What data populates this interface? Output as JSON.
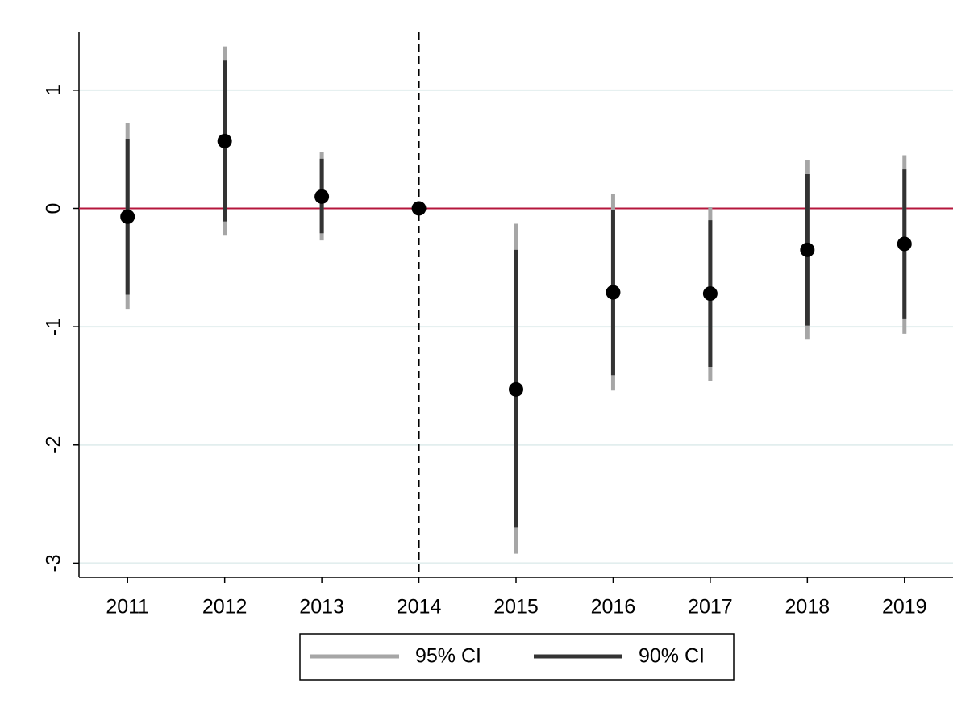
{
  "chart_data": {
    "type": "coefplot",
    "x": [
      2011,
      2012,
      2013,
      2014,
      2015,
      2016,
      2017,
      2018,
      2019
    ],
    "estimates": {
      "color": "#000000",
      "values": [
        -0.07,
        0.57,
        0.1,
        0,
        -1.53,
        -0.71,
        -0.72,
        -0.35,
        -0.3
      ]
    },
    "series": [
      {
        "name": "95% CI",
        "color": "#a6a6a6",
        "lower": [
          -0.85,
          -0.23,
          -0.27,
          null,
          -2.92,
          -1.54,
          -1.46,
          -1.11,
          -1.06
        ],
        "upper": [
          0.72,
          1.37,
          0.48,
          null,
          -0.13,
          0.12,
          0.01,
          0.41,
          0.45
        ]
      },
      {
        "name": "90% CI",
        "color": "#333333",
        "lower": [
          -0.73,
          -0.11,
          -0.21,
          null,
          -2.7,
          -1.41,
          -1.34,
          -0.99,
          -0.93
        ],
        "upper": [
          0.59,
          1.25,
          0.42,
          null,
          -0.35,
          -0.01,
          -0.1,
          0.29,
          0.33
        ]
      }
    ],
    "xlim": [
      2010.5,
      2019.5
    ],
    "ylim": [
      -3.12,
      1.49
    ],
    "xticks": [
      2011,
      2012,
      2013,
      2014,
      2015,
      2016,
      2017,
      2018,
      2019
    ],
    "yticks": [
      -3,
      -2,
      -1,
      0,
      1
    ],
    "grid": true,
    "grid_color": "#e2eeee",
    "hline": {
      "value": 0,
      "color": "#b5173c"
    },
    "vline": {
      "value": 2014,
      "color": "#000000",
      "dashed": true
    },
    "legend": "bottom"
  }
}
